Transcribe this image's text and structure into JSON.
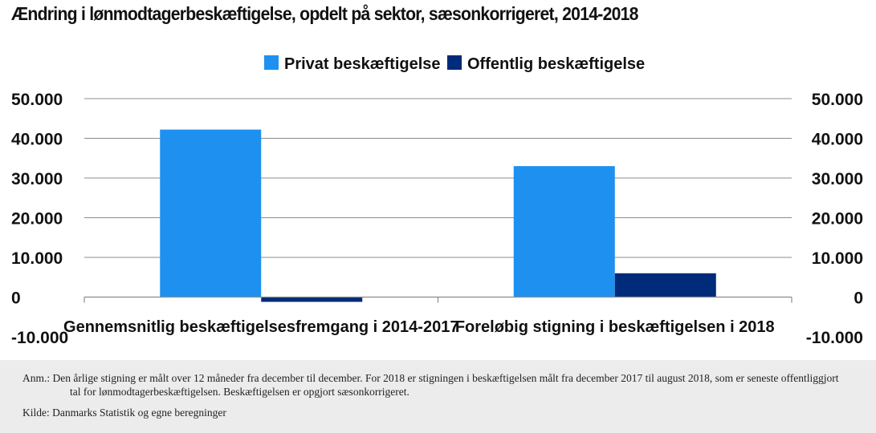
{
  "title": "Ændring i lønmodtagerbeskæftigelse, opdelt på sektor, sæsonkorrigeret, 2014-2018",
  "chart_data": {
    "type": "bar",
    "categories": [
      "Gennemsnitlig beskæftigelsesfremgang i 2014-2017",
      "Foreløbig stigning i beskæftigelsen i 2018"
    ],
    "series": [
      {
        "name": "Privat beskæftigelse",
        "color": "#1e90f0",
        "values": [
          42200,
          33000
        ]
      },
      {
        "name": "Offentlig beskæftigelse",
        "color": "#002a7a",
        "values": [
          -1200,
          6000
        ]
      }
    ],
    "ylim": [
      -10000,
      50000
    ],
    "yticks": [
      -10000,
      0,
      10000,
      20000,
      30000,
      40000,
      50000
    ],
    "ytick_labels": [
      "-10.000",
      "0",
      "10.000",
      "20.000",
      "30.000",
      "40.000",
      "50.000"
    ],
    "grid": true,
    "legend": "top-center",
    "secondary_axis": true
  },
  "notes": {
    "anm": "Anm.: Den årlige stigning er målt over 12 måneder fra december til december. For 2018 er stigningen i beskæftigelsen målt fra december 2017 til august 2018, som er seneste offentliggjort tal for lønmodtagerbeskæftigelsen. Beskæftigelsen er opgjort sæsonkorrigeret.",
    "kilde": "Kilde: Danmarks Statistik og egne beregninger"
  }
}
